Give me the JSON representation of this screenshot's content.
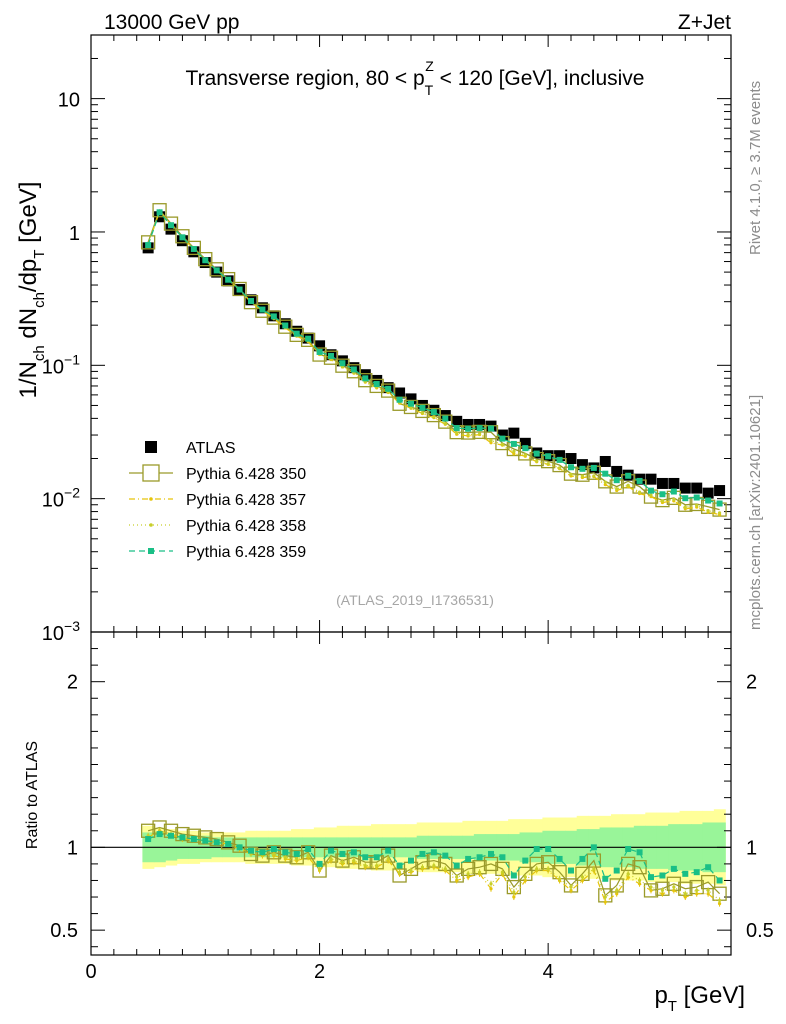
{
  "header": {
    "energy_label": "13000 GeV pp",
    "process_label": "Z+Jet"
  },
  "side": {
    "rivet_label": "Rivet 4.1.0, ≥ 3.7M events",
    "mcplots_label": "mcplots.cern.ch [arXiv:2401.10621]"
  },
  "watermark": "(ATLAS_2019_I1736531)",
  "chart_data": {
    "type": "line",
    "title": "Transverse region, 80 < p_T^Z < 120 [GeV], inclusive",
    "title_parts": {
      "before": "Transverse region, 80 < p",
      "sub": "T",
      "sup": "Z",
      "after": " < 120 [GeV], inclusive"
    },
    "ylabel": "1/N_ch dN_ch/dp_T [GeV]",
    "ylabel_parts": [
      "1/N",
      "ch",
      " dN",
      "ch",
      "/dp",
      "T",
      " [GeV]"
    ],
    "xlabel": "p_T [GeV]",
    "xlabel_parts": [
      "p",
      "T",
      " [GeV]"
    ],
    "ratio_ylabel": "Ratio to ATLAS",
    "xlim": [
      0,
      5.6
    ],
    "ylim": [
      0.001,
      30
    ],
    "ratio_ylim": [
      0.35,
      2.3
    ],
    "x_ticks": [
      "0",
      "2",
      "4"
    ],
    "y_ticks": [
      {
        "mant": "10",
        "exp": ""
      },
      {
        "mant": "1",
        "exp": ""
      },
      {
        "mant": "10",
        "exp": "−1"
      },
      {
        "mant": "10",
        "exp": "−2"
      },
      {
        "mant": "10",
        "exp": "−3"
      }
    ],
    "ratio_ticks": [
      "2",
      "1",
      "0.5"
    ],
    "x": [
      0.5,
      0.6,
      0.7,
      0.8,
      0.9,
      1.0,
      1.1,
      1.2,
      1.3,
      1.4,
      1.5,
      1.6,
      1.7,
      1.8,
      1.9,
      2.0,
      2.1,
      2.2,
      2.3,
      2.4,
      2.5,
      2.6,
      2.7,
      2.8,
      2.9,
      3.0,
      3.1,
      3.2,
      3.3,
      3.4,
      3.5,
      3.6,
      3.7,
      3.8,
      3.9,
      4.0,
      4.1,
      4.2,
      4.3,
      4.4,
      4.5,
      4.6,
      4.7,
      4.8,
      4.9,
      5.0,
      5.1,
      5.2,
      5.3,
      5.4,
      5.5
    ],
    "atlas": [
      0.76,
      1.3,
      1.05,
      0.86,
      0.71,
      0.59,
      0.5,
      0.43,
      0.37,
      0.31,
      0.27,
      0.235,
      0.205,
      0.18,
      0.16,
      0.14,
      0.12,
      0.108,
      0.096,
      0.085,
      0.077,
      0.068,
      0.062,
      0.056,
      0.05,
      0.046,
      0.042,
      0.038,
      0.036,
      0.036,
      0.035,
      0.03,
      0.031,
      0.026,
      0.022,
      0.021,
      0.021,
      0.02,
      0.018,
      0.017,
      0.019,
      0.016,
      0.015,
      0.014,
      0.014,
      0.013,
      0.013,
      0.012,
      0.012,
      0.011,
      0.0115
    ],
    "ratio_band_inner": [
      0.09,
      0.09,
      0.08,
      0.07,
      0.07,
      0.07,
      0.06,
      0.06,
      0.06,
      0.06,
      0.06,
      0.06,
      0.06,
      0.06,
      0.06,
      0.06,
      0.06,
      0.06,
      0.06,
      0.06,
      0.06,
      0.06,
      0.06,
      0.06,
      0.07,
      0.07,
      0.07,
      0.07,
      0.07,
      0.08,
      0.08,
      0.08,
      0.08,
      0.09,
      0.09,
      0.1,
      0.1,
      0.1,
      0.11,
      0.11,
      0.12,
      0.12,
      0.12,
      0.13,
      0.13,
      0.13,
      0.14,
      0.14,
      0.14,
      0.15,
      0.15
    ],
    "ratio_band_outer": [
      0.13,
      0.12,
      0.11,
      0.1,
      0.1,
      0.09,
      0.09,
      0.09,
      0.09,
      0.1,
      0.1,
      0.1,
      0.1,
      0.11,
      0.11,
      0.12,
      0.12,
      0.13,
      0.13,
      0.13,
      0.14,
      0.14,
      0.14,
      0.14,
      0.15,
      0.15,
      0.15,
      0.15,
      0.16,
      0.16,
      0.16,
      0.16,
      0.17,
      0.17,
      0.17,
      0.18,
      0.18,
      0.18,
      0.19,
      0.19,
      0.19,
      0.2,
      0.2,
      0.2,
      0.21,
      0.21,
      0.21,
      0.22,
      0.22,
      0.22,
      0.23
    ],
    "series": [
      {
        "name": "Pythia 6.428 350",
        "color": "#9a9a2a",
        "dash": "",
        "marker": "open-square",
        "ratio": [
          1.1,
          1.12,
          1.1,
          1.08,
          1.07,
          1.06,
          1.05,
          1.03,
          1.01,
          0.96,
          0.95,
          0.97,
          0.95,
          0.94,
          0.97,
          0.86,
          0.95,
          0.92,
          0.94,
          0.91,
          0.91,
          0.95,
          0.83,
          0.87,
          0.91,
          0.92,
          0.9,
          0.83,
          0.87,
          0.88,
          0.9,
          0.87,
          0.76,
          0.84,
          0.9,
          0.91,
          0.85,
          0.77,
          0.84,
          0.92,
          0.71,
          0.77,
          0.9,
          0.88,
          0.74,
          0.75,
          0.78,
          0.75,
          0.76,
          0.79,
          0.72
        ]
      },
      {
        "name": "Pythia 6.428 357",
        "color": "#e6c40a",
        "dash": "6,3,1,3",
        "marker": "small-dot",
        "ratio": [
          1.06,
          1.1,
          1.08,
          1.05,
          1.05,
          1.04,
          1.03,
          1.02,
          0.99,
          0.96,
          0.95,
          0.95,
          0.93,
          0.92,
          0.94,
          0.86,
          0.92,
          0.9,
          0.91,
          0.88,
          0.88,
          0.92,
          0.84,
          0.85,
          0.87,
          0.88,
          0.86,
          0.8,
          0.82,
          0.84,
          0.75,
          0.84,
          0.7,
          0.8,
          0.86,
          0.86,
          0.8,
          0.74,
          0.8,
          0.86,
          0.67,
          0.72,
          0.82,
          0.78,
          0.74,
          0.72,
          0.74,
          0.7,
          0.72,
          0.72,
          0.66
        ]
      },
      {
        "name": "Pythia 6.428 358",
        "color": "#c8cf2a",
        "dash": "1,3",
        "marker": "small-dot",
        "ratio": [
          1.07,
          1.1,
          1.08,
          1.06,
          1.05,
          1.04,
          1.03,
          1.02,
          1.0,
          0.96,
          0.96,
          0.96,
          0.94,
          0.93,
          0.95,
          0.87,
          0.93,
          0.91,
          0.92,
          0.89,
          0.89,
          0.93,
          0.85,
          0.86,
          0.88,
          0.89,
          0.87,
          0.82,
          0.84,
          0.85,
          0.78,
          0.85,
          0.73,
          0.82,
          0.87,
          0.87,
          0.81,
          0.76,
          0.82,
          0.87,
          0.7,
          0.74,
          0.84,
          0.8,
          0.76,
          0.74,
          0.76,
          0.72,
          0.74,
          0.74,
          0.68
        ]
      },
      {
        "name": "Pythia 6.428 359",
        "color": "#1abf86",
        "dash": "6,4",
        "marker": "filled-square",
        "ratio": [
          1.05,
          1.08,
          1.07,
          1.06,
          1.05,
          1.04,
          1.03,
          1.02,
          1.0,
          0.98,
          0.97,
          0.99,
          0.97,
          0.96,
          0.99,
          0.9,
          0.98,
          0.96,
          0.97,
          0.94,
          0.94,
          0.98,
          0.89,
          0.92,
          0.96,
          0.97,
          0.95,
          0.89,
          0.93,
          0.94,
          0.96,
          0.94,
          0.83,
          0.92,
          0.99,
          0.99,
          0.93,
          0.86,
          0.93,
          1.0,
          0.81,
          0.86,
          0.99,
          0.97,
          0.82,
          0.83,
          0.87,
          0.84,
          0.85,
          0.88,
          0.8
        ]
      }
    ],
    "legend": [
      "ATLAS",
      "Pythia 6.428 350",
      "Pythia 6.428 357",
      "Pythia 6.428 358",
      "Pythia 6.428 359"
    ]
  }
}
